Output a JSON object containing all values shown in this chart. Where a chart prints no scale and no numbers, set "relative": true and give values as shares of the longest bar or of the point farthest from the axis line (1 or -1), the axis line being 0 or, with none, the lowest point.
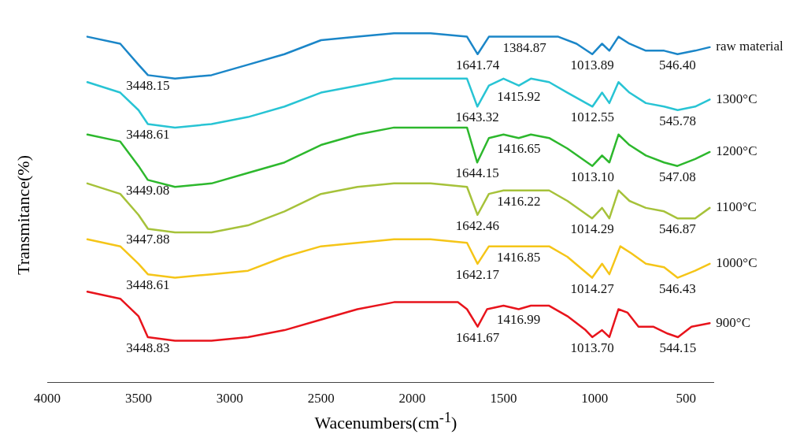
{
  "chart_data": {
    "type": "line",
    "relative": true,
    "xlabel": "Wacenumbers(cm$^{-1}$)",
    "ylabel": "Transmitance(%)",
    "xlim": [
      4000,
      350
    ],
    "xticks": [
      4000,
      3500,
      3000,
      2500,
      2000,
      1500,
      1000,
      500
    ],
    "grid": false,
    "legend": false,
    "marker": "none",
    "line_style": "solid",
    "series": [
      {
        "name": "900°C",
        "color": "#e8141c",
        "x": [
          3780,
          3600,
          3500,
          3448.83,
          3300,
          3100,
          2900,
          2700,
          2500,
          2300,
          2100,
          1900,
          1750,
          1700,
          1641.67,
          1590,
          1500,
          1416.99,
          1350,
          1250,
          1150,
          1050,
          1013.7,
          960,
          920,
          870,
          820,
          760,
          680,
          600,
          544.15,
          470,
          370
        ],
        "values": [
          0.26,
          0.24,
          0.19,
          0.13,
          0.12,
          0.12,
          0.13,
          0.15,
          0.18,
          0.21,
          0.23,
          0.23,
          0.23,
          0.21,
          0.16,
          0.21,
          0.22,
          0.21,
          0.22,
          0.22,
          0.19,
          0.15,
          0.13,
          0.15,
          0.13,
          0.21,
          0.2,
          0.16,
          0.16,
          0.14,
          0.13,
          0.16,
          0.17
        ]
      },
      {
        "name": "1000°C",
        "color": "#f5c518",
        "x": [
          3780,
          3600,
          3500,
          3448.61,
          3300,
          3100,
          2900,
          2700,
          2500,
          2300,
          2100,
          1900,
          1700,
          1642.17,
          1580,
          1500,
          1416.85,
          1350,
          1250,
          1150,
          1014.27,
          960,
          920,
          860,
          800,
          720,
          620,
          546.43,
          450,
          370
        ],
        "values": [
          0.41,
          0.39,
          0.34,
          0.31,
          0.3,
          0.31,
          0.32,
          0.36,
          0.39,
          0.4,
          0.41,
          0.41,
          0.4,
          0.34,
          0.39,
          0.39,
          0.39,
          0.39,
          0.39,
          0.36,
          0.3,
          0.34,
          0.31,
          0.39,
          0.37,
          0.34,
          0.33,
          0.3,
          0.32,
          0.34
        ]
      },
      {
        "name": "1100°C",
        "color": "#a6c23a",
        "x": [
          3780,
          3600,
          3500,
          3447.88,
          3300,
          3100,
          2900,
          2700,
          2500,
          2300,
          2100,
          1900,
          1700,
          1642.46,
          1580,
          1500,
          1416.22,
          1350,
          1250,
          1150,
          1014.29,
          960,
          920,
          870,
          810,
          720,
          620,
          546.87,
          450,
          370
        ],
        "values": [
          0.57,
          0.54,
          0.48,
          0.44,
          0.43,
          0.43,
          0.45,
          0.49,
          0.54,
          0.56,
          0.57,
          0.57,
          0.56,
          0.48,
          0.54,
          0.55,
          0.55,
          0.55,
          0.55,
          0.52,
          0.47,
          0.5,
          0.47,
          0.55,
          0.52,
          0.5,
          0.49,
          0.47,
          0.47,
          0.5
        ]
      },
      {
        "name": "1200°C",
        "color": "#2db82d",
        "x": [
          3780,
          3600,
          3500,
          3449.08,
          3300,
          3100,
          2900,
          2700,
          2500,
          2300,
          2100,
          1900,
          1700,
          1644.15,
          1580,
          1500,
          1416.65,
          1350,
          1250,
          1150,
          1013.1,
          960,
          920,
          870,
          810,
          720,
          620,
          547.08,
          450,
          370
        ],
        "values": [
          0.71,
          0.69,
          0.62,
          0.58,
          0.56,
          0.57,
          0.6,
          0.63,
          0.68,
          0.71,
          0.73,
          0.73,
          0.73,
          0.63,
          0.7,
          0.71,
          0.7,
          0.71,
          0.7,
          0.67,
          0.62,
          0.65,
          0.63,
          0.71,
          0.68,
          0.65,
          0.63,
          0.62,
          0.64,
          0.66
        ]
      },
      {
        "name": "1300°C",
        "color": "#28c4d4",
        "x": [
          3780,
          3600,
          3500,
          3448.61,
          3300,
          3100,
          2900,
          2700,
          2500,
          2300,
          2100,
          1900,
          1700,
          1643.32,
          1580,
          1500,
          1415.92,
          1350,
          1250,
          1150,
          1012.55,
          960,
          920,
          870,
          810,
          720,
          620,
          545.78,
          450,
          370
        ],
        "values": [
          0.86,
          0.83,
          0.78,
          0.74,
          0.73,
          0.74,
          0.76,
          0.79,
          0.83,
          0.85,
          0.87,
          0.87,
          0.87,
          0.79,
          0.85,
          0.87,
          0.85,
          0.87,
          0.86,
          0.83,
          0.79,
          0.83,
          0.8,
          0.86,
          0.83,
          0.8,
          0.79,
          0.78,
          0.79,
          0.81
        ]
      },
      {
        "name": "raw material",
        "color": "#1b86c8",
        "x": [
          3780,
          3600,
          3500,
          3448.15,
          3300,
          3100,
          2900,
          2700,
          2500,
          2300,
          2100,
          1900,
          1700,
          1641.74,
          1580,
          1500,
          1384.87,
          1300,
          1200,
          1100,
          1013.89,
          960,
          920,
          870,
          810,
          720,
          620,
          546.4,
          450,
          370
        ],
        "values": [
          0.99,
          0.97,
          0.91,
          0.88,
          0.87,
          0.88,
          0.91,
          0.94,
          0.98,
          0.99,
          1,
          1,
          0.99,
          0.94,
          0.99,
          0.99,
          0.99,
          0.99,
          0.99,
          0.97,
          0.94,
          0.97,
          0.95,
          0.99,
          0.97,
          0.95,
          0.95,
          0.94,
          0.95,
          0.96
        ]
      }
    ],
    "annotations": [
      {
        "text": "3448.83",
        "x": 3448.83,
        "y": 0.13
      },
      {
        "text": "1641.67",
        "x": 1641.67,
        "y": 0.16
      },
      {
        "text": "1416.99",
        "x": 1416.99,
        "y": 0.21
      },
      {
        "text": "1013.70",
        "x": 1013.7,
        "y": 0.13
      },
      {
        "text": "544.15",
        "x": 544.15,
        "y": 0.13
      },
      {
        "text": "3448.61",
        "x": 3448.61,
        "y": 0.31
      },
      {
        "text": "1642.17",
        "x": 1642.17,
        "y": 0.34
      },
      {
        "text": "1416.85",
        "x": 1416.85,
        "y": 0.39
      },
      {
        "text": "1014.27",
        "x": 1014.27,
        "y": 0.3
      },
      {
        "text": "546.43",
        "x": 546.43,
        "y": 0.3
      },
      {
        "text": "3447.88",
        "x": 3447.88,
        "y": 0.44
      },
      {
        "text": "1642.46",
        "x": 1642.46,
        "y": 0.48
      },
      {
        "text": "1416.22",
        "x": 1416.22,
        "y": 0.55
      },
      {
        "text": "1014.29",
        "x": 1014.29,
        "y": 0.47
      },
      {
        "text": "546.87",
        "x": 546.87,
        "y": 0.47
      },
      {
        "text": "3449.08",
        "x": 3449.08,
        "y": 0.58
      },
      {
        "text": "1644.15",
        "x": 1644.15,
        "y": 0.63
      },
      {
        "text": "1416.65",
        "x": 1416.65,
        "y": 0.7
      },
      {
        "text": "1013.10",
        "x": 1013.1,
        "y": 0.62
      },
      {
        "text": "547.08",
        "x": 547.08,
        "y": 0.62
      },
      {
        "text": "3448.61",
        "x": 3448.61,
        "y": 0.74
      },
      {
        "text": "1643.32",
        "x": 1643.32,
        "y": 0.79
      },
      {
        "text": "1415.92",
        "x": 1415.92,
        "y": 0.85
      },
      {
        "text": "1012.55",
        "x": 1012.55,
        "y": 0.79
      },
      {
        "text": "545.78",
        "x": 545.78,
        "y": 0.78
      },
      {
        "text": "3448.15",
        "x": 3448.15,
        "y": 0.88
      },
      {
        "text": "1641.74",
        "x": 1641.74,
        "y": 0.94
      },
      {
        "text": "1384.87",
        "x": 1384.87,
        "y": 0.99
      },
      {
        "text": "1013.89",
        "x": 1013.89,
        "y": 0.94
      },
      {
        "text": "546.40",
        "x": 546.4,
        "y": 0.94
      }
    ]
  }
}
